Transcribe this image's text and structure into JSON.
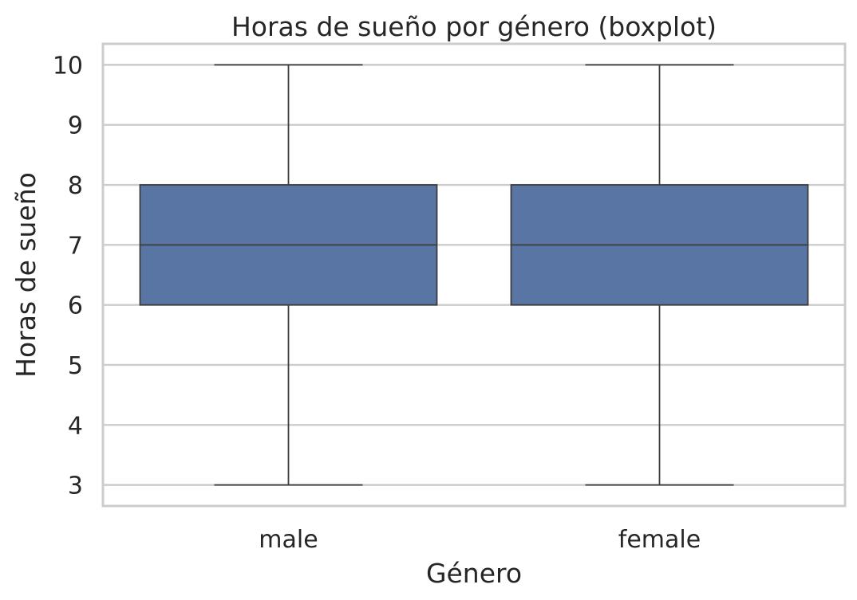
{
  "chart_data": {
    "type": "boxplot",
    "title": "Horas de sueño por género (boxplot)",
    "xlabel": "Género",
    "ylabel": "Horas de sueño",
    "categories": [
      "male",
      "female"
    ],
    "boxes": [
      {
        "category": "male",
        "whislo": 3,
        "q1": 6,
        "med": 7,
        "q3": 8,
        "whishi": 10
      },
      {
        "category": "female",
        "whislo": 3,
        "q1": 6,
        "med": 7,
        "q3": 8,
        "whishi": 10
      }
    ],
    "yticks": [
      3,
      4,
      5,
      6,
      7,
      8,
      9,
      10
    ],
    "ylim": [
      2.65,
      10.35
    ],
    "grid": true,
    "box_color": "#5975a4",
    "line_color": "#3d3d3d",
    "grid_color": "#cccccc"
  }
}
